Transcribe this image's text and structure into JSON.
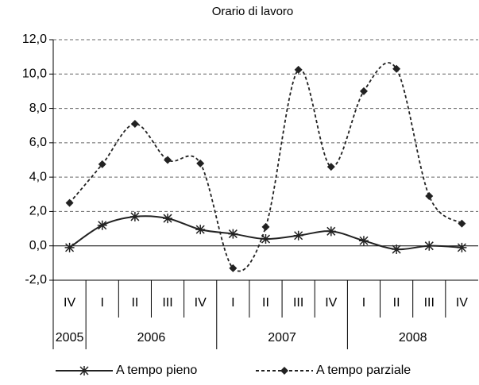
{
  "chart_data": {
    "type": "line",
    "title": "Orario di lavoro",
    "groups": [
      {
        "name": "2005",
        "categories": [
          "IV"
        ]
      },
      {
        "name": "2006",
        "categories": [
          "I",
          "II",
          "III",
          "IV"
        ]
      },
      {
        "name": "2007",
        "categories": [
          "I",
          "II",
          "III",
          "IV"
        ]
      },
      {
        "name": "2008",
        "categories": [
          "I",
          "II",
          "III",
          "IV"
        ]
      }
    ],
    "series": [
      {
        "name": "A tempo pieno",
        "color": "#222222",
        "marker": "star",
        "dash": false,
        "values": [
          -0.1,
          1.2,
          1.7,
          1.6,
          0.95,
          0.7,
          0.4,
          0.6,
          0.85,
          0.3,
          -0.2,
          0.0,
          -0.1
        ]
      },
      {
        "name": "A tempo parziale",
        "color": "#222222",
        "marker": "diamond",
        "dash": true,
        "values": [
          2.5,
          4.75,
          7.1,
          5.0,
          4.8,
          -1.3,
          1.1,
          10.25,
          4.6,
          9.0,
          10.3,
          2.9,
          1.3
        ]
      }
    ],
    "ylim": [
      -2,
      12
    ],
    "yticks": [
      {
        "value": -2,
        "label": "-2,0"
      },
      {
        "value": 0,
        "label": "0,0"
      },
      {
        "value": 2,
        "label": "2,0"
      },
      {
        "value": 4,
        "label": "4,0"
      },
      {
        "value": 6,
        "label": "6,0"
      },
      {
        "value": 8,
        "label": "8,0"
      },
      {
        "value": 10,
        "label": "10,0"
      },
      {
        "value": 12,
        "label": "12,0"
      }
    ],
    "grid": true,
    "legend": "bottom"
  }
}
